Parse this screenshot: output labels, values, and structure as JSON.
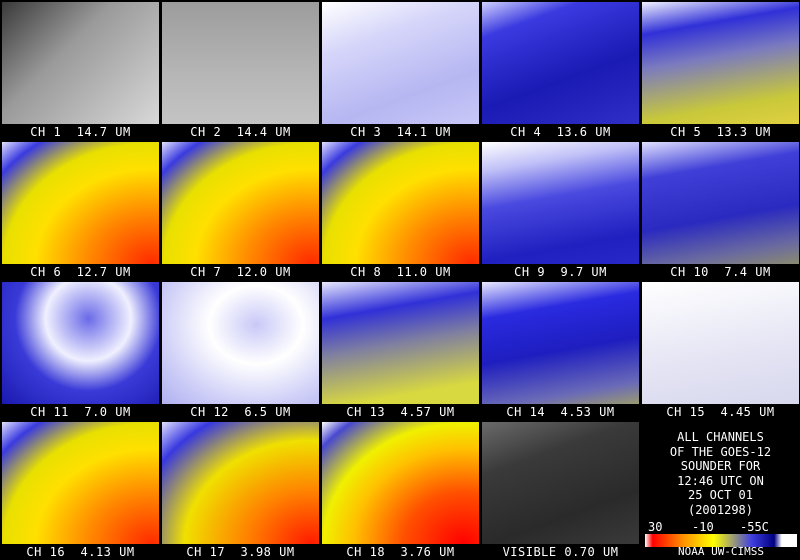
{
  "panels": [
    {
      "label": "CH 1  14.7 UM"
    },
    {
      "label": "CH 2  14.4 UM"
    },
    {
      "label": "CH 3  14.1 UM"
    },
    {
      "label": "CH 4  13.6 UM"
    },
    {
      "label": "CH 5  13.3 UM"
    },
    {
      "label": "CH 6  12.7 UM"
    },
    {
      "label": "CH 7  12.0 UM"
    },
    {
      "label": "CH 8  11.0 UM"
    },
    {
      "label": "CH 9  9.7 UM"
    },
    {
      "label": "CH 10  7.4 UM"
    },
    {
      "label": "CH 11  7.0 UM"
    },
    {
      "label": "CH 12  6.5 UM"
    },
    {
      "label": "CH 13  4.57 UM"
    },
    {
      "label": "CH 14  4.53 UM"
    },
    {
      "label": "CH 15  4.45 UM"
    },
    {
      "label": "CH 16  4.13 UM"
    },
    {
      "label": "CH 17  3.98 UM"
    },
    {
      "label": "CH 18  3.76 UM"
    },
    {
      "label": "VISIBLE 0.70 UM"
    }
  ],
  "info": {
    "lines": [
      "ALL CHANNELS",
      "OF THE GOES-12",
      "SOUNDER FOR",
      "12:46 UTC ON",
      "25 OCT 01",
      "(2001298)"
    ],
    "colorbar": [
      "30",
      "-10",
      "-55C"
    ],
    "footer": "NOAA UW-CIMSS"
  }
}
